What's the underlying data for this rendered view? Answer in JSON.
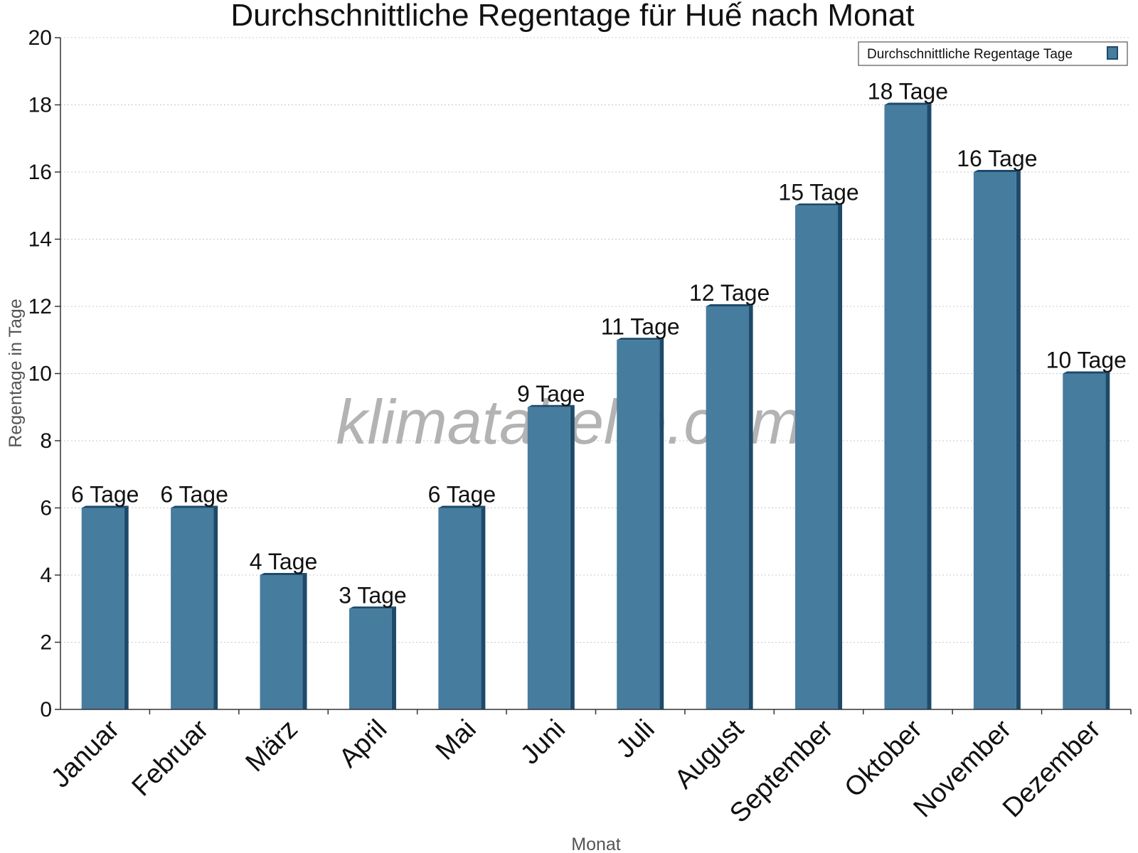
{
  "chart_data": {
    "type": "bar",
    "title": "Durchschnittliche Regentage für Huế nach Monat",
    "xlabel": "Monat",
    "ylabel": "Regentage in Tage",
    "ylim": [
      0,
      20
    ],
    "yticks": [
      0,
      2,
      4,
      6,
      8,
      10,
      12,
      14,
      16,
      18,
      20
    ],
    "grid": true,
    "legend_position": "top-right",
    "categories": [
      "Januar",
      "Februar",
      "März",
      "April",
      "Mai",
      "Juni",
      "Juli",
      "August",
      "September",
      "Oktober",
      "November",
      "Dezember"
    ],
    "series": [
      {
        "name": "Durchschnittliche Regentage Tage",
        "color": "#467c9e",
        "dark_color": "#1d4a6b",
        "values": [
          6,
          6,
          4,
          3,
          6,
          9,
          11,
          12,
          15,
          18,
          16,
          10
        ],
        "labels": [
          "6 Tage",
          "6 Tage",
          "4 Tage",
          "3 Tage",
          "6 Tage",
          "9 Tage",
          "11 Tage",
          "12 Tage",
          "15 Tage",
          "18 Tage",
          "16 Tage",
          "10 Tage"
        ]
      }
    ]
  },
  "watermark": "klimatabelle.com"
}
